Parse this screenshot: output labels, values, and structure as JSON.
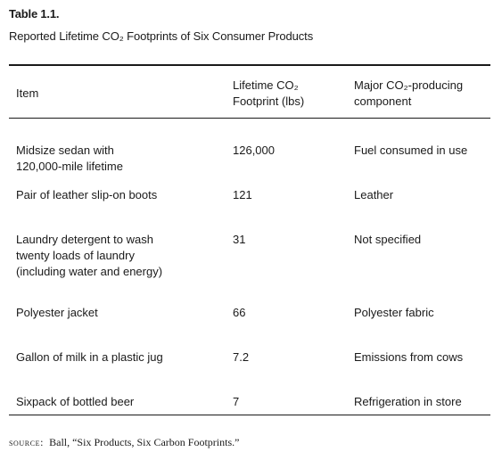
{
  "table": {
    "label": "Table 1.1.",
    "caption": "Reported Lifetime CO₂ Footprints of Six Consumer Products",
    "headers": {
      "item": "Item",
      "footprint": "Lifetime CO₂\nFootprint (lbs)",
      "component": "Major CO₂-producing\ncomponent"
    },
    "rows": [
      {
        "item": "Midsize sedan with\n120,000-mile lifetime",
        "footprint": "126,000",
        "component": "Fuel consumed in use"
      },
      {
        "item": "Pair of leather slip-on boots",
        "footprint": "121",
        "component": "Leather"
      },
      {
        "item": "Laundry detergent to wash\ntwenty loads of laundry\n(including water and energy)",
        "footprint": "31",
        "component": "Not specified"
      },
      {
        "item": "Polyester jacket",
        "footprint": "66",
        "component": "Polyester fabric"
      },
      {
        "item": "Gallon of milk in a plastic jug",
        "footprint": "7.2",
        "component": "Emissions from cows"
      },
      {
        "item": "Sixpack of bottled beer",
        "footprint": "7",
        "component": "Refrigeration in store"
      }
    ]
  },
  "source": {
    "label": "SOURCE:",
    "text": "Ball, “Six Products, Six Carbon Footprints.”"
  }
}
